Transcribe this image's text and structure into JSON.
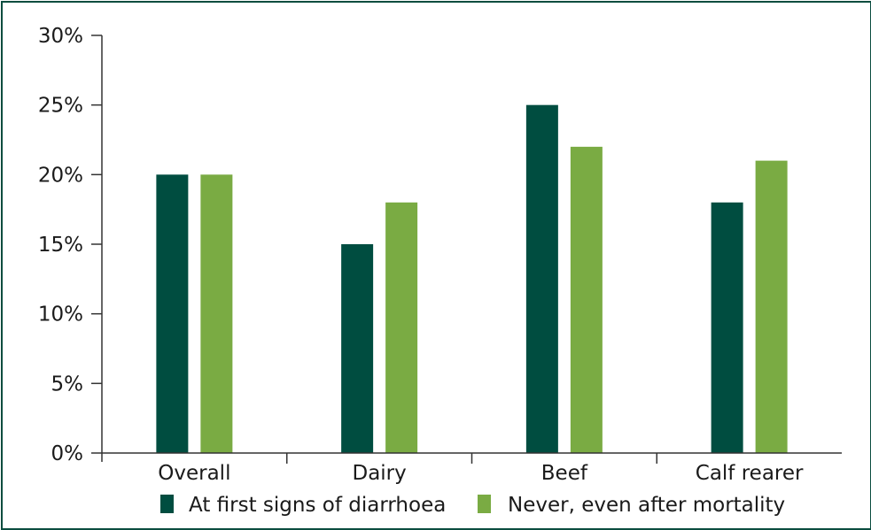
{
  "chart_data": {
    "type": "bar",
    "categories": [
      "Overall",
      "Dairy",
      "Beef",
      "Calf rearer"
    ],
    "series": [
      {
        "name": "At first signs of diarrhoea",
        "color": "#004d40",
        "values": [
          20,
          15,
          25,
          18
        ]
      },
      {
        "name": "Never, even after mortality",
        "color": "#7aab43",
        "values": [
          20,
          18,
          22,
          21
        ]
      }
    ],
    "y_ticks": [
      "0%",
      "5%",
      "10%",
      "15%",
      "20%",
      "25%",
      "30%"
    ],
    "ylim": [
      0,
      30
    ],
    "grid": false,
    "legend_position": "bottom"
  },
  "colors": {
    "frame_border": "#0b4d3f",
    "axis": "#333333"
  }
}
